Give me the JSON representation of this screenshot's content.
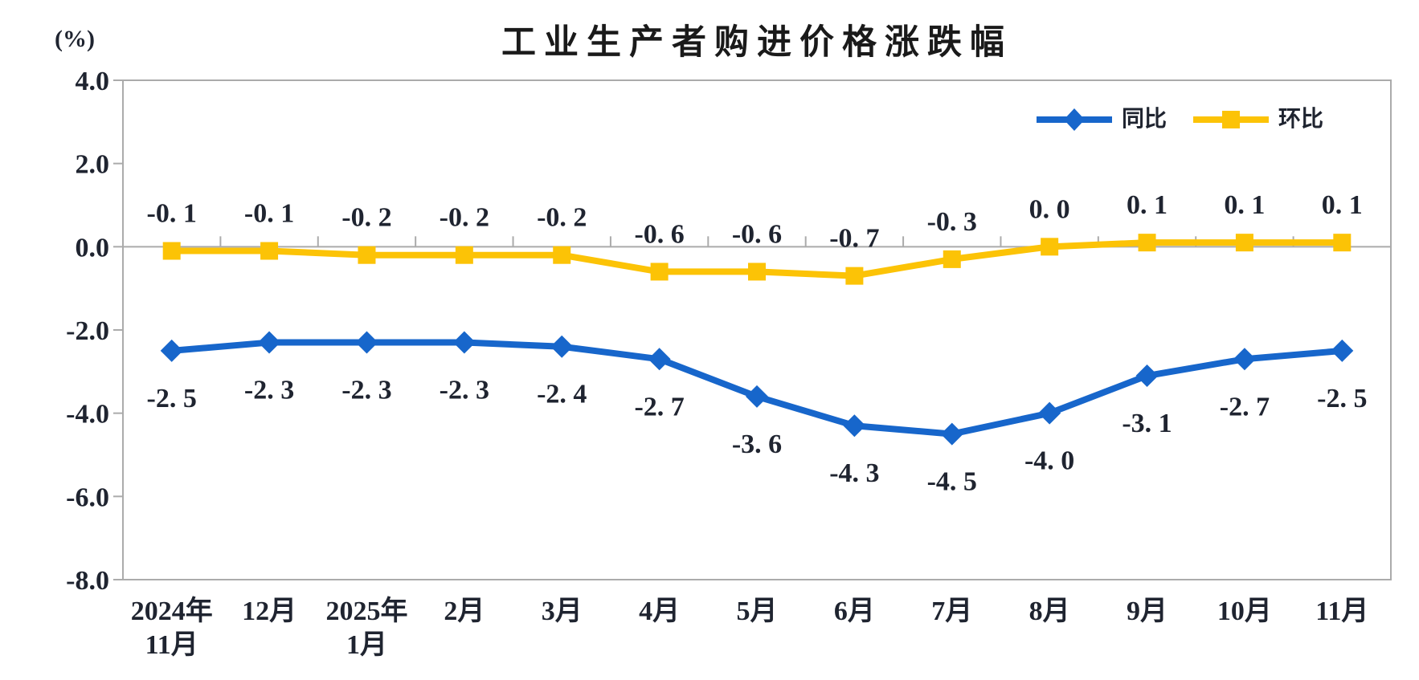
{
  "page": {
    "background": "#FFFFFF"
  },
  "chart": {
    "colors": {
      "tongbi_blue": "#1766CB",
      "huanbi_yellow": "#FCC306",
      "axis_gray": "#ABABAB",
      "text": "#1F2430",
      "title": "#1A1A1A"
    }
  },
  "chart_data": {
    "type": "line",
    "title": "工业生产者购进价格涨跌幅",
    "ylabel": "(%)",
    "xlabel": "",
    "ylim": [
      -8.0,
      4.0
    ],
    "ytick_step": 2.0,
    "ytick_labels": [
      "4.0",
      "2.0",
      "0.0",
      "-2.0",
      "-4.0",
      "-6.0",
      "-8.0"
    ],
    "grid": false,
    "legend_position": "top-right",
    "categories": [
      "2024年\n11月",
      "12月",
      "2025年\n1月",
      "2月",
      "3月",
      "4月",
      "5月",
      "6月",
      "7月",
      "8月",
      "9月",
      "10月",
      "11月"
    ],
    "series": [
      {
        "name": "同比",
        "marker": "diamond",
        "color": "#1766CB",
        "label_position": "below",
        "values": [
          -2.5,
          -2.3,
          -2.3,
          -2.3,
          -2.4,
          -2.7,
          -3.6,
          -4.3,
          -4.5,
          -4.0,
          -3.1,
          -2.7,
          -2.5
        ],
        "labels": [
          "-2. 5",
          "-2. 3",
          "-2. 3",
          "-2. 3",
          "-2. 4",
          "-2. 7",
          "-3. 6",
          "-4. 3",
          "-4. 5",
          "-4. 0",
          "-3. 1",
          "-2. 7",
          "-2. 5"
        ]
      },
      {
        "name": "环比",
        "marker": "square",
        "color": "#FCC306",
        "label_position": "above",
        "values": [
          -0.1,
          -0.1,
          -0.2,
          -0.2,
          -0.2,
          -0.6,
          -0.6,
          -0.7,
          -0.3,
          0.0,
          0.1,
          0.1,
          0.1
        ],
        "labels": [
          "-0. 1",
          "-0. 1",
          "-0. 2",
          "-0. 2",
          "-0. 2",
          "-0. 6",
          "-0. 6",
          "-0. 7",
          "-0. 3",
          "0. 0",
          "0. 1",
          "0. 1",
          "0. 1"
        ]
      }
    ]
  }
}
